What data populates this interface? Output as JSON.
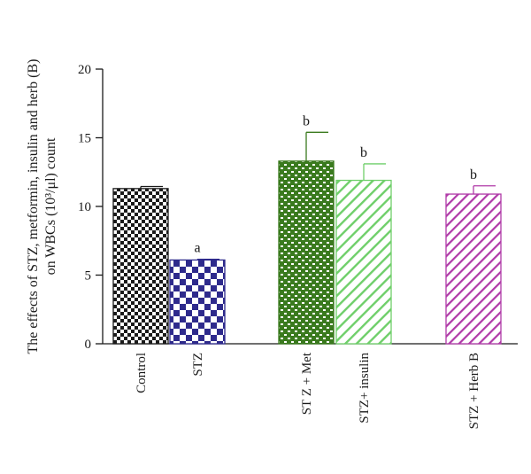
{
  "chart_data": {
    "type": "bar",
    "title": "",
    "ylabel_line1": "The effects of STZ, metformin, insulin and herb (B)",
    "ylabel_line2": "on WBCs (10³/μl) count",
    "xlabel": "",
    "ylim": [
      0,
      20
    ],
    "yticks": [
      0,
      5,
      10,
      15,
      20
    ],
    "categories": [
      "Control",
      "STZ",
      "ST Z + Met",
      "STZ+ insulin",
      "STZ + Herb B"
    ],
    "values": [
      11.3,
      6.1,
      13.3,
      11.9,
      10.9
    ],
    "errors": [
      0.15,
      0.05,
      2.1,
      1.2,
      0.6
    ],
    "significance": [
      "",
      "a",
      "b",
      "b",
      "b"
    ],
    "colors": [
      "#1a1a1a",
      "#2e2a8c",
      "#3a7a1e",
      "#6fcf6a",
      "#b03aa8"
    ],
    "patterns": [
      "checker",
      "large-checker",
      "bricks",
      "diagonal-lines",
      "diagonal-lines"
    ]
  }
}
